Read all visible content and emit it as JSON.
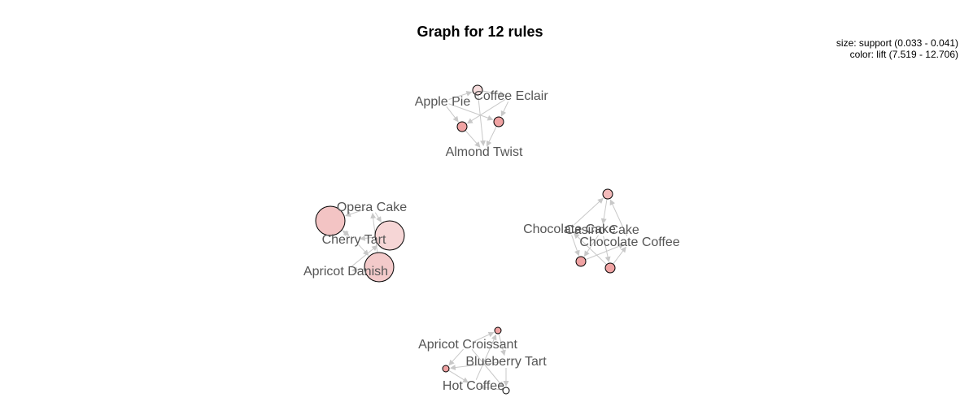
{
  "title": "Graph for 12 rules",
  "legend": {
    "size": "size: support (0.033 - 0.041)",
    "color": "color: lift (7.519 - 12.706)"
  },
  "colors": {
    "edge": "#c8c8c8",
    "label": "#555555"
  },
  "items": [
    {
      "id": "apple_pie",
      "label": "Apple Pie"
    },
    {
      "id": "coffee_eclair",
      "label": "Coffee Eclair"
    },
    {
      "id": "almond_twist",
      "label": "Almond Twist"
    },
    {
      "id": "opera_cake",
      "label": "Opera Cake"
    },
    {
      "id": "cherry_tart",
      "label": "Cherry Tart"
    },
    {
      "id": "apricot_danish",
      "label": "Apricot Danish"
    },
    {
      "id": "chocolate_cake",
      "label": "Chocolate Cake"
    },
    {
      "id": "casino_cake",
      "label": "Casino Cake"
    },
    {
      "id": "chocolate_coffee",
      "label": "Chocolate Coffee"
    },
    {
      "id": "apricot_croissant",
      "label": "Apricot Croissant"
    },
    {
      "id": "blueberry_tart",
      "label": "Blueberry Tart"
    },
    {
      "id": "hot_coffee",
      "label": "Hot Coffee"
    }
  ],
  "rules": [
    {
      "id": "r1",
      "support": "small",
      "fill": "#f6dcdc"
    },
    {
      "id": "r2",
      "support": "small",
      "fill": "#f0a3a3"
    },
    {
      "id": "r3",
      "support": "small",
      "fill": "#f0a3a3"
    },
    {
      "id": "r4",
      "support": "large",
      "fill": "#f3c4c4"
    },
    {
      "id": "r5",
      "support": "large",
      "fill": "#f6d6d6"
    },
    {
      "id": "r6",
      "support": "large",
      "fill": "#f3caca"
    },
    {
      "id": "r7",
      "support": "small",
      "fill": "#f3baba"
    },
    {
      "id": "r8",
      "support": "small",
      "fill": "#f0a3a3"
    },
    {
      "id": "r9",
      "support": "small",
      "fill": "#f0a3a3"
    },
    {
      "id": "r10",
      "support": "tiny",
      "fill": "#f0a3a3"
    },
    {
      "id": "r11",
      "support": "tiny",
      "fill": "#f0a3a3"
    },
    {
      "id": "r12",
      "support": "tiny",
      "fill": "#ffffff"
    }
  ]
}
